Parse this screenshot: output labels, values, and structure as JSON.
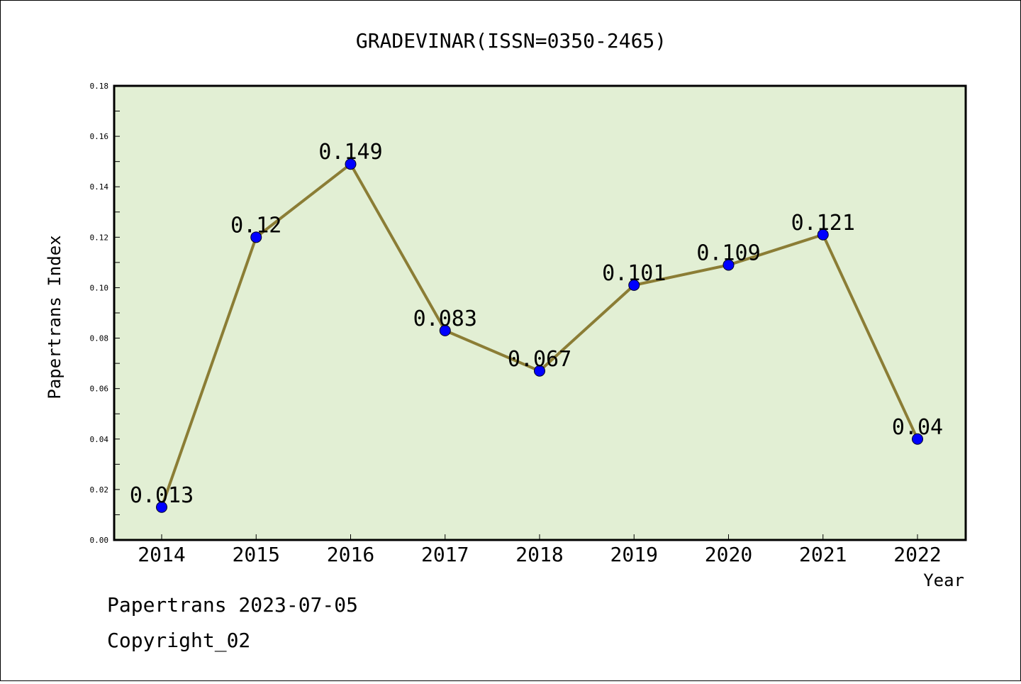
{
  "chart_data": {
    "type": "line",
    "title": "GRADEVINAR(ISSN=0350-2465)",
    "xlabel": "Year",
    "ylabel": "Papertrans Index",
    "categories": [
      "2014",
      "2015",
      "2016",
      "2017",
      "2018",
      "2019",
      "2020",
      "2021",
      "2022"
    ],
    "series": [
      {
        "values": [
          0.013,
          0.12,
          0.149,
          0.083,
          0.067,
          0.101,
          0.109,
          0.121,
          0.04
        ],
        "labels": [
          "0.013",
          "0.12",
          "0.149",
          "0.083",
          "0.067",
          "0.101",
          "0.109",
          "0.121",
          "0.04"
        ],
        "line_color": "#8b7d35",
        "marker_color": "#0000ff"
      }
    ],
    "ylim": [
      0,
      0.18
    ],
    "yticks": [
      "0.00",
      "0.02",
      "0.04",
      "0.06",
      "0.08",
      "0.10",
      "0.12",
      "0.14",
      "0.16",
      "0.18"
    ],
    "plot_background": "#e2efd4",
    "grid": false
  },
  "footer": {
    "line1": "Papertrans 2023-07-05",
    "line2": "Copyright_02"
  }
}
